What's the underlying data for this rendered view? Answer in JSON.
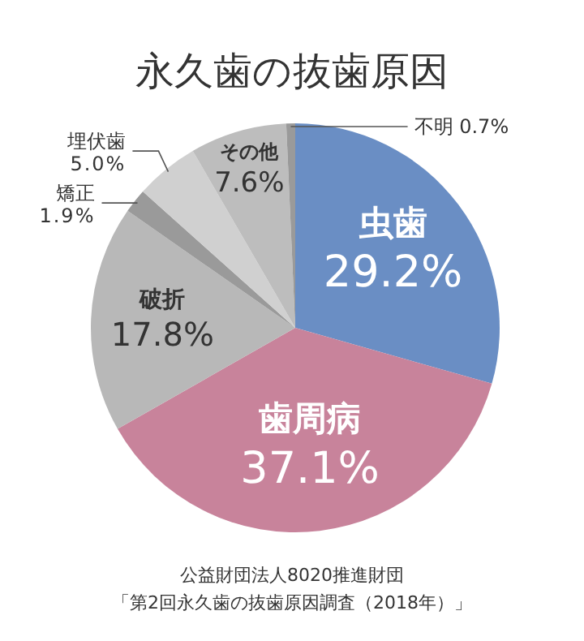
{
  "chart_data": {
    "type": "pie",
    "title": "永久歯の抜歯原因",
    "categories": [
      "虫歯",
      "歯周病",
      "破折",
      "矯正",
      "埋伏歯",
      "その他",
      "不明"
    ],
    "values": [
      29.2,
      37.1,
      17.8,
      1.9,
      5.0,
      7.6,
      0.7
    ],
    "value_labels": [
      "29.2%",
      "37.1%",
      "17.8%",
      "1.9%",
      "5.0%",
      "7.6%",
      "0.7%"
    ],
    "colors": [
      "#6a8ec4",
      "#c8839b",
      "#b8b8b8",
      "#9a9a9a",
      "#d0d0d0",
      "#bdbdbd",
      "#9a9a9a"
    ],
    "annotations": [
      "公益財団法人8020推進財団",
      "「第2回永久歯の抜歯原因調査（2018年）」"
    ]
  }
}
